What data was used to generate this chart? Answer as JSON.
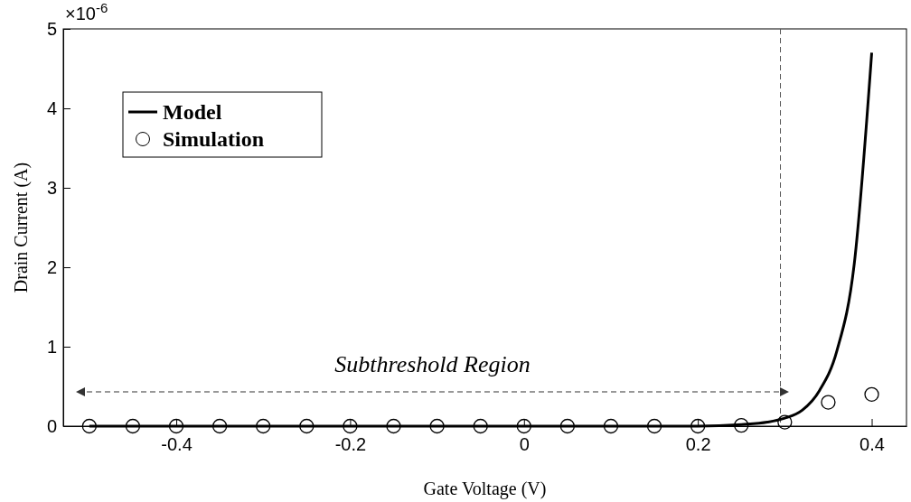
{
  "chart_data": {
    "type": "line",
    "xlabel": "Gate Voltage (V)",
    "ylabel": "Drain Current (A)",
    "xlim": [
      -0.53,
      0.44
    ],
    "xticks": [
      -0.4,
      -0.2,
      0,
      0.2,
      0.4
    ],
    "ylim": [
      0,
      5
    ],
    "yticks": [
      0,
      1,
      2,
      3,
      4,
      5
    ],
    "legend": "top left",
    "grid": false,
    "series": [
      {
        "name": "Model",
        "color": "#000000",
        "line_style": "solid",
        "x": [
          -0.5,
          -0.4,
          -0.3,
          -0.2,
          -0.1,
          0,
          0.1,
          0.2,
          0.25,
          0.28,
          0.3,
          0.32,
          0.34,
          0.36,
          0.38,
          0.4
        ],
        "values": [
          0,
          0,
          0,
          0,
          0,
          0,
          0,
          0,
          0.02,
          0.05,
          0.1,
          0.2,
          0.45,
          0.95,
          2.05,
          4.7
        ]
      },
      {
        "name": "Simulation",
        "type": "scatter",
        "marker": "circle",
        "color": "#000000",
        "x": [
          -0.5,
          -0.45,
          -0.4,
          -0.35,
          -0.3,
          -0.25,
          -0.2,
          -0.15,
          -0.1,
          -0.05,
          0,
          0.05,
          0.1,
          0.15,
          0.2,
          0.25,
          0.3,
          0.35,
          0.4
        ],
        "values": [
          0,
          0,
          0,
          0,
          0,
          0,
          0,
          0,
          0,
          0,
          0,
          0,
          0,
          0,
          0,
          0.01,
          0.05,
          0.3,
          0.4
        ]
      }
    ],
    "ref_lines": [
      {
        "axis": "x",
        "value": 0.295,
        "line_style": "dashed",
        "color": "#555555"
      }
    ],
    "annotations": [
      "×10$^{-6}$",
      "Subthreshold Region"
    ]
  }
}
